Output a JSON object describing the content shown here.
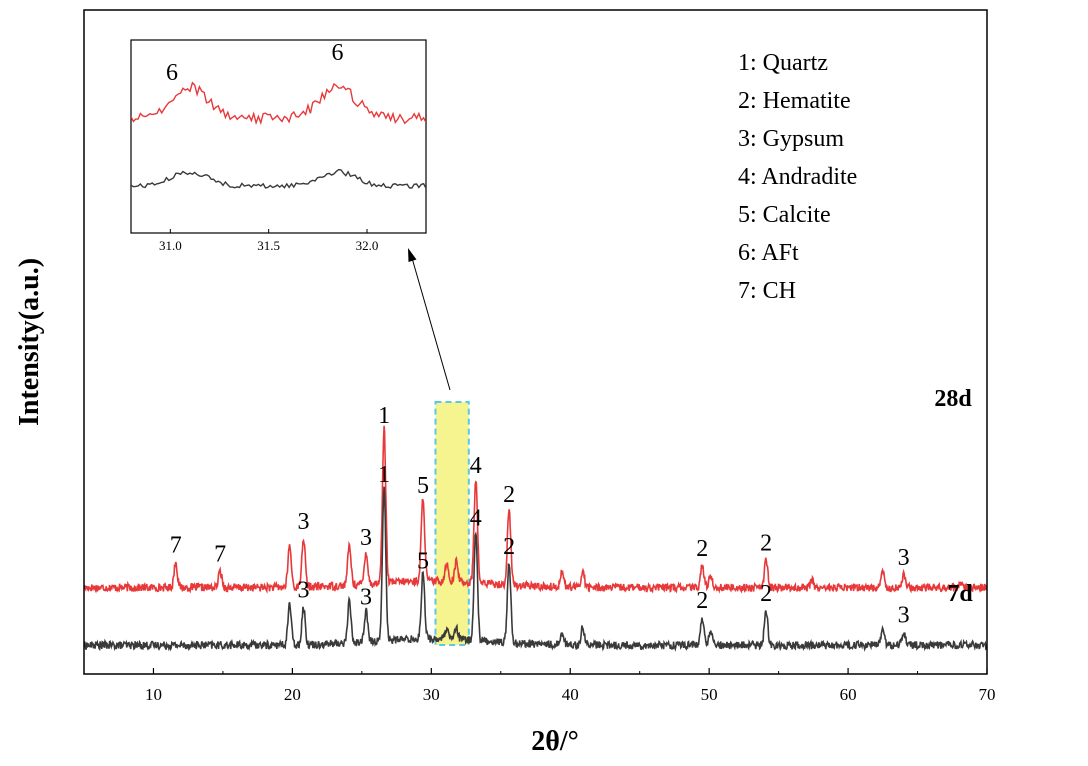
{
  "chart_data": {
    "type": "line",
    "title": "",
    "xlabel": "2θ/°",
    "ylabel": "Intensity(a.u.)",
    "xlim": [
      5,
      70
    ],
    "xticks": [
      10,
      20,
      30,
      40,
      50,
      60,
      70
    ],
    "xtick_labels": [
      "10",
      "20",
      "30",
      "40",
      "50",
      "60",
      "70"
    ],
    "grid": false,
    "legend": {
      "placement": "top-right",
      "entries": [
        "1: Quartz",
        "2: Hematite",
        "3: Gypsum",
        "4: Andradite",
        "5: Calcite",
        "6: AFt",
        "7: CH"
      ]
    },
    "series": [
      {
        "name": "28d",
        "color": "#e8393a",
        "baseline": 1.9,
        "peaks": [
          {
            "x": 11.6,
            "h": 0.7,
            "label": "7"
          },
          {
            "x": 14.8,
            "h": 0.45,
            "label": "7"
          },
          {
            "x": 19.8,
            "h": 1.15
          },
          {
            "x": 20.8,
            "h": 1.35,
            "label": "3"
          },
          {
            "x": 24.1,
            "h": 1.1
          },
          {
            "x": 25.3,
            "h": 0.9,
            "label": "3"
          },
          {
            "x": 26.6,
            "h": 4.3,
            "label": "1"
          },
          {
            "x": 29.4,
            "h": 2.35,
            "label": "5"
          },
          {
            "x": 31.1,
            "h": 0.5
          },
          {
            "x": 31.8,
            "h": 0.55
          },
          {
            "x": 33.2,
            "h": 2.9,
            "label": "4"
          },
          {
            "x": 35.6,
            "h": 2.1,
            "label": "2"
          },
          {
            "x": 39.4,
            "h": 0.45
          },
          {
            "x": 40.9,
            "h": 0.45
          },
          {
            "x": 49.5,
            "h": 0.6,
            "label": "2"
          },
          {
            "x": 50.1,
            "h": 0.35
          },
          {
            "x": 54.1,
            "h": 0.75,
            "label": "2"
          },
          {
            "x": 57.4,
            "h": 0.2
          },
          {
            "x": 62.5,
            "h": 0.45
          },
          {
            "x": 64.0,
            "h": 0.35,
            "label": "3"
          },
          {
            "x": 68.2,
            "h": 0.15
          }
        ]
      },
      {
        "name": "7d",
        "color": "#3a3a3a",
        "baseline": 0.3,
        "peaks": [
          {
            "x": 19.8,
            "h": 1.15
          },
          {
            "x": 20.8,
            "h": 1.05,
            "label": "3"
          },
          {
            "x": 24.1,
            "h": 1.15
          },
          {
            "x": 25.3,
            "h": 0.85,
            "label": "3"
          },
          {
            "x": 26.6,
            "h": 4.25,
            "label": "1"
          },
          {
            "x": 29.4,
            "h": 1.85,
            "label": "5"
          },
          {
            "x": 31.1,
            "h": 0.25
          },
          {
            "x": 31.8,
            "h": 0.3
          },
          {
            "x": 33.2,
            "h": 3.05,
            "label": "4"
          },
          {
            "x": 35.6,
            "h": 2.25,
            "label": "2"
          },
          {
            "x": 39.4,
            "h": 0.35
          },
          {
            "x": 40.9,
            "h": 0.5
          },
          {
            "x": 49.5,
            "h": 0.75,
            "label": "2"
          },
          {
            "x": 50.1,
            "h": 0.4
          },
          {
            "x": 54.1,
            "h": 0.95,
            "label": "2"
          },
          {
            "x": 62.5,
            "h": 0.5
          },
          {
            "x": 64.0,
            "h": 0.35,
            "label": "3"
          }
        ]
      }
    ],
    "highlight_range": [
      30.3,
      32.7
    ],
    "inset": {
      "xlim": [
        30.8,
        32.3
      ],
      "xticks": [
        31.0,
        31.5,
        32.0
      ],
      "xtick_labels": [
        "31.0",
        "31.5",
        "32.0"
      ],
      "peak_labels": [
        {
          "x": 31.1,
          "label": "6"
        },
        {
          "x": 31.85,
          "label": "6"
        }
      ]
    }
  }
}
